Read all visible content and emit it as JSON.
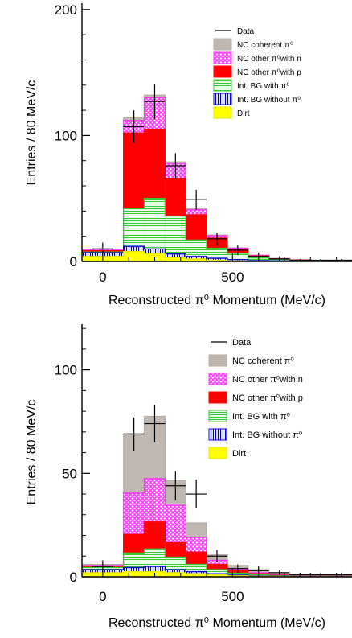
{
  "chart_data": [
    {
      "type": "stacked-histogram",
      "xlabel": "Reconstructed π⁰ Momentum (MeV/c)",
      "ylabel": "Entries / 80 MeV/c",
      "xlim": [
        -80,
        960
      ],
      "ylim": [
        0,
        205
      ],
      "xticks": [
        "0",
        "500"
      ],
      "yticks": [
        "0",
        "100",
        "200"
      ],
      "bin_edges": [
        -80,
        80,
        160,
        240,
        320,
        400,
        480,
        560,
        640,
        720,
        800,
        880,
        960
      ],
      "legend_position": "top-right",
      "legend_entries": [
        "Data",
        "NC coherent π⁰",
        "NC other π⁰with n",
        "NC other π⁰with p",
        "Int. BG with π⁰",
        "Int. BG without π⁰",
        "Dirt"
      ],
      "series": [
        {
          "name": "Dirt",
          "color": "#ffff00",
          "values": [
            4,
            8,
            6,
            3,
            2,
            1,
            0.5,
            0.3,
            0.2,
            0.1,
            0.1,
            0.1
          ]
        },
        {
          "name": "Int. BG without π⁰",
          "color": "#0000cc",
          "values": [
            3,
            4,
            4,
            3,
            2,
            1.5,
            1,
            0.5,
            0.3,
            0.2,
            0.1,
            0.1
          ]
        },
        {
          "name": "Int. BG with π⁰",
          "color": "#33cc33",
          "values": [
            0.5,
            30,
            40,
            30,
            13,
            8,
            5,
            2,
            1,
            0.5,
            0.3,
            0.2
          ]
        },
        {
          "name": "NC other π⁰with p",
          "color": "#ff0000",
          "values": [
            1,
            60,
            55,
            30,
            20,
            8,
            3,
            1.5,
            0.5,
            0.3,
            0.2,
            0.1
          ]
        },
        {
          "name": "NC other π⁰with n",
          "color": "#ff44ff",
          "values": [
            0.5,
            10,
            25,
            12,
            4,
            2,
            1,
            0.5,
            0.2,
            0.1,
            0.1,
            0.1
          ]
        },
        {
          "name": "NC coherent π⁰",
          "color": "#c0b8b0",
          "values": [
            0.3,
            2,
            2,
            1,
            1,
            0.5,
            0.3,
            0.2,
            0.1,
            0.1,
            0.1,
            0.1
          ]
        }
      ],
      "data_points": [
        {
          "x": 0,
          "y": 10,
          "err": 5
        },
        {
          "x": 120,
          "y": 107,
          "err": 13
        },
        {
          "x": 200,
          "y": 127,
          "err": 14
        },
        {
          "x": 280,
          "y": 76,
          "err": 10
        },
        {
          "x": 360,
          "y": 49,
          "err": 8
        },
        {
          "x": 440,
          "y": 18,
          "err": 5
        },
        {
          "x": 520,
          "y": 9,
          "err": 4
        },
        {
          "x": 600,
          "y": 4,
          "err": 3
        },
        {
          "x": 680,
          "y": 2,
          "err": 2
        },
        {
          "x": 760,
          "y": 1,
          "err": 1
        },
        {
          "x": 840,
          "y": 1,
          "err": 1
        },
        {
          "x": 920,
          "y": 1,
          "err": 1
        }
      ]
    },
    {
      "type": "stacked-histogram",
      "xlabel": "Reconstructed π⁰ Momentum (MeV/c)",
      "ylabel": "Entries / 80 MeV/c",
      "xlim": [
        -80,
        960
      ],
      "ylim": [
        0,
        122
      ],
      "xticks": [
        "0",
        "500"
      ],
      "yticks": [
        "0",
        "50",
        "100"
      ],
      "bin_edges": [
        -80,
        80,
        160,
        240,
        320,
        400,
        480,
        560,
        640,
        720,
        800,
        880,
        960
      ],
      "legend_position": "top-right",
      "legend_entries": [
        "Data",
        "NC coherent π⁰",
        "NC other π⁰with n",
        "NC other π⁰with p",
        "Int. BG with π⁰",
        "Int. BG without π⁰",
        "Dirt"
      ],
      "series": [
        {
          "name": "Dirt",
          "color": "#ffff00",
          "values": [
            2,
            2.5,
            2.5,
            2,
            1.5,
            1,
            0.5,
            0.3,
            0.2,
            0.1,
            0.1,
            0.1
          ]
        },
        {
          "name": "Int. BG without π⁰",
          "color": "#0000cc",
          "values": [
            1.5,
            2,
            2.5,
            1.5,
            1,
            0.5,
            0.3,
            0.2,
            0.1,
            0.1,
            0.1,
            0.1
          ]
        },
        {
          "name": "Int. BG with π⁰",
          "color": "#33cc33",
          "values": [
            1,
            7,
            8.5,
            6,
            3.5,
            2,
            1,
            0.5,
            0.2,
            0.1,
            0.1,
            0.1
          ]
        },
        {
          "name": "NC other π⁰with p",
          "color": "#ff0000",
          "values": [
            0.5,
            9,
            13,
            7,
            6,
            2.5,
            1.2,
            0.5,
            0.2,
            0.1,
            0.1,
            0.1
          ]
        },
        {
          "name": "NC other π⁰with n",
          "color": "#ff44ff",
          "values": [
            0.5,
            20,
            21,
            18,
            7,
            2,
            0.5,
            0.5,
            0.2,
            0.1,
            0.1,
            0.1
          ]
        },
        {
          "name": "NC coherent π⁰",
          "color": "#c0b8b0",
          "values": [
            0.5,
            28,
            30,
            12,
            7,
            3,
            2,
            1.5,
            0.5,
            0.3,
            0.1,
            0.1
          ]
        }
      ],
      "data_points": [
        {
          "x": 0,
          "y": 5,
          "err": 3
        },
        {
          "x": 120,
          "y": 69,
          "err": 8
        },
        {
          "x": 200,
          "y": 74,
          "err": 9
        },
        {
          "x": 280,
          "y": 44,
          "err": 7
        },
        {
          "x": 360,
          "y": 40,
          "err": 7
        },
        {
          "x": 440,
          "y": 10,
          "err": 3
        },
        {
          "x": 520,
          "y": 4,
          "err": 2
        },
        {
          "x": 600,
          "y": 3,
          "err": 2
        },
        {
          "x": 680,
          "y": 2,
          "err": 1
        },
        {
          "x": 760,
          "y": 1,
          "err": 1
        },
        {
          "x": 840,
          "y": 1,
          "err": 1
        },
        {
          "x": 920,
          "y": 1,
          "err": 1
        }
      ]
    }
  ]
}
